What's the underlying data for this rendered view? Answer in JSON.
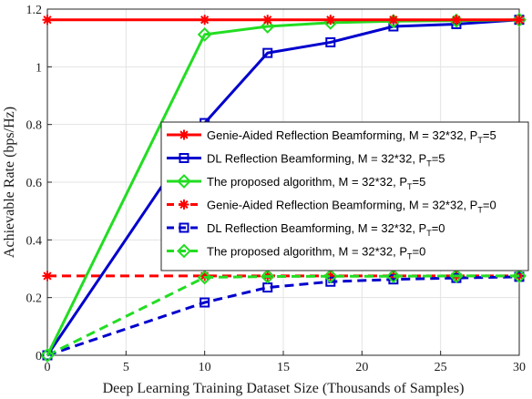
{
  "chart_data": {
    "type": "line",
    "title": "",
    "xlabel": "Deep Learning Training Dataset Size (Thousands of Samples)",
    "ylabel": "Achievable Rate (bps/Hz)",
    "xlim": [
      0,
      30
    ],
    "ylim": [
      0,
      1.2
    ],
    "xticks": [
      "0",
      "5",
      "10",
      "15",
      "20",
      "25",
      "30"
    ],
    "yticks": [
      "0",
      "0.2",
      "0.4",
      "0.6",
      "0.8",
      "1",
      "1.2"
    ],
    "grid": true,
    "legend_position": "right, middle",
    "x": [
      0,
      10,
      14,
      18,
      22,
      26,
      30
    ],
    "series": [
      {
        "name": "Genie-Aided Reflection Beamforming, M = 32*32, P_T=5",
        "label_main": "Genie-Aided Reflection Beamforming, M = 32*32, P",
        "label_sub": "T",
        "label_tail": "=5",
        "color": "#ff0000",
        "line": "solid",
        "marker": "asterisk",
        "values": [
          1.163,
          1.163,
          1.163,
          1.163,
          1.163,
          1.163,
          1.163
        ]
      },
      {
        "name": "DL Reflection Beamforming, M = 32*32, P_T=5",
        "label_main": "DL Reflection Beamforming, M = 32*32, P",
        "label_sub": "T",
        "label_tail": "=5",
        "color": "#0000cd",
        "line": "solid",
        "marker": "square",
        "values": [
          0.0,
          0.805,
          1.048,
          1.085,
          1.14,
          1.148,
          1.163
        ]
      },
      {
        "name": "The proposed algorithm, M = 32*32, P_T=5",
        "label_main": "The proposed algorithm, M = 32*32, P",
        "label_sub": "T",
        "label_tail": "=5",
        "color": "#22dd22",
        "line": "solid",
        "marker": "diamond",
        "values": [
          0.0,
          1.112,
          1.14,
          1.153,
          1.158,
          1.16,
          1.163
        ]
      },
      {
        "name": "Genie-Aided Reflection Beamforming, M = 32*32, P_T=0",
        "label_main": "Genie-Aided Reflection Beamforming, M = 32*32, P",
        "label_sub": "T",
        "label_tail": "=0",
        "color": "#ff0000",
        "line": "dashed",
        "marker": "asterisk",
        "values": [
          0.275,
          0.275,
          0.275,
          0.275,
          0.275,
          0.275,
          0.275
        ]
      },
      {
        "name": "DL Reflection Beamforming, M = 32*32, P_T=0",
        "label_main": "DL Reflection Beamforming, M = 32*32, P",
        "label_sub": "T",
        "label_tail": "=0",
        "color": "#0000cd",
        "line": "dashed",
        "marker": "square",
        "values": [
          0.0,
          0.183,
          0.235,
          0.255,
          0.263,
          0.268,
          0.272
        ]
      },
      {
        "name": "The proposed algorithm, M = 32*32, P_T=0",
        "label_main": "The proposed algorithm, M = 32*32, P",
        "label_sub": "T",
        "label_tail": "=0",
        "color": "#22dd22",
        "line": "dashed",
        "marker": "diamond",
        "values": [
          0.0,
          0.27,
          0.273,
          0.274,
          0.274,
          0.275,
          0.275
        ]
      }
    ]
  }
}
